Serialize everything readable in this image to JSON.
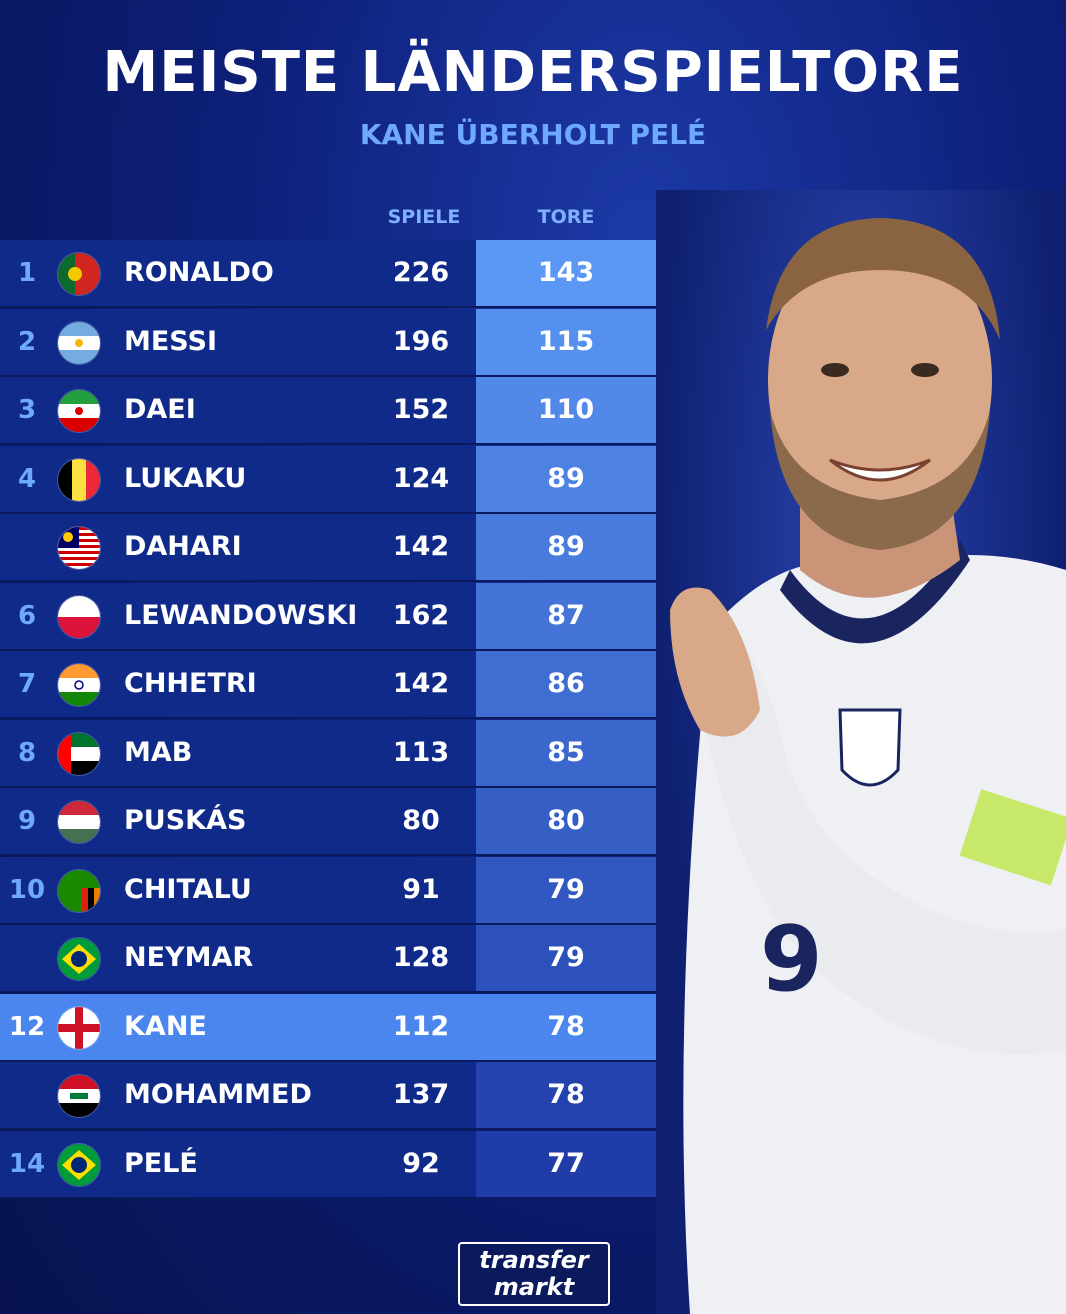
{
  "header": {
    "title": "MEISTE LÄNDERSPIELTORE",
    "subtitle": "KANE ÜBERHOLT PELÉ"
  },
  "columns": {
    "games": "SPIELE",
    "goals": "TORE"
  },
  "rows": [
    {
      "rank": "1",
      "name": "RONALDO",
      "games": "226",
      "goals": "143",
      "flag": "portugal-flag-icon",
      "highlight": false
    },
    {
      "rank": "2",
      "name": "MESSI",
      "games": "196",
      "goals": "115",
      "flag": "argentina-flag-icon",
      "highlight": false
    },
    {
      "rank": "3",
      "name": "DAEI",
      "games": "152",
      "goals": "110",
      "flag": "iran-flag-icon",
      "highlight": false
    },
    {
      "rank": "4",
      "name": "LUKAKU",
      "games": "124",
      "goals": "89",
      "flag": "belgium-flag-icon",
      "highlight": false
    },
    {
      "rank": "",
      "name": "DAHARI",
      "games": "142",
      "goals": "89",
      "flag": "malaysia-flag-icon",
      "highlight": false
    },
    {
      "rank": "6",
      "name": "LEWANDOWSKI",
      "games": "162",
      "goals": "87",
      "flag": "poland-flag-icon",
      "highlight": false
    },
    {
      "rank": "7",
      "name": "CHHETRI",
      "games": "142",
      "goals": "86",
      "flag": "india-flag-icon",
      "highlight": false
    },
    {
      "rank": "8",
      "name": "MAB",
      "games": "113",
      "goals": "85",
      "flag": "uae-flag-icon",
      "highlight": false
    },
    {
      "rank": "9",
      "name": "PUSKÁS",
      "games": "80",
      "goals": "80",
      "flag": "hungary-flag-icon",
      "highlight": false
    },
    {
      "rank": "10",
      "name": "CHITALU",
      "games": "91",
      "goals": "79",
      "flag": "zambia-flag-icon",
      "highlight": false
    },
    {
      "rank": "",
      "name": "NEYMAR",
      "games": "128",
      "goals": "79",
      "flag": "brazil-flag-icon",
      "highlight": false
    },
    {
      "rank": "12",
      "name": "KANE",
      "games": "112",
      "goals": "78",
      "flag": "england-flag-icon",
      "highlight": true
    },
    {
      "rank": "",
      "name": "MOHAMMED",
      "games": "137",
      "goals": "78",
      "flag": "iraq-flag-icon",
      "highlight": false
    },
    {
      "rank": "14",
      "name": "PELÉ",
      "games": "92",
      "goals": "77",
      "flag": "brazil-flag-icon",
      "highlight": false
    }
  ],
  "branding": {
    "logo_line1": "transfer",
    "logo_line2": "markt"
  },
  "colors": {
    "background": "#0d1f78",
    "row": "#102a8a",
    "highlight": "#4a86ee",
    "accent_text": "#6ea8ff",
    "goals_top": "#5b97f5",
    "goals_bottom": "#1f3ca8"
  }
}
